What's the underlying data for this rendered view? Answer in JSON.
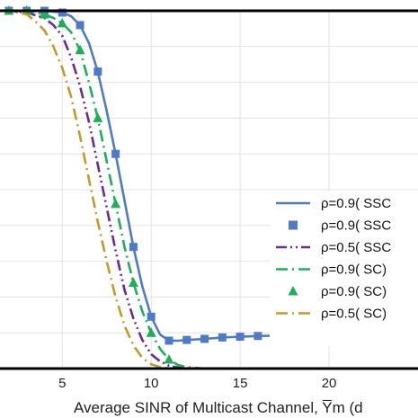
{
  "chart_data": {
    "type": "line",
    "title": "",
    "xlabel": "Average SINR of Multicast Channel, Y̅m (d",
    "ylabel": "",
    "xlim": [
      1.5,
      25
    ],
    "ylim": [
      0,
      1
    ],
    "x_ticks": [
      "5",
      "10",
      "15",
      "20"
    ],
    "x_tick_values": [
      5,
      10,
      15,
      20
    ],
    "y_gridlines": [
      0.1,
      0.2,
      0.3,
      0.4,
      0.5,
      0.6,
      0.7,
      0.8,
      0.9
    ],
    "grid": true,
    "legend_position": "right",
    "series": [
      {
        "name": "ρ=0.9( SSC",
        "style": "solid",
        "marker": "none",
        "color": "#4f7bc6",
        "x": [
          1.5,
          2,
          3,
          4,
          5,
          5.5,
          6,
          6.5,
          7,
          7.5,
          8,
          8.5,
          9,
          9.5,
          10,
          10.5,
          11,
          11.5,
          12,
          13,
          14,
          15,
          16,
          18,
          20,
          22,
          25
        ],
        "y": [
          1.0,
          1.0,
          1.0,
          1.0,
          0.995,
          0.985,
          0.96,
          0.91,
          0.83,
          0.72,
          0.6,
          0.47,
          0.34,
          0.23,
          0.145,
          0.095,
          0.078,
          0.078,
          0.08,
          0.083,
          0.087,
          0.089,
          0.091,
          0.093,
          0.093,
          0.094,
          0.094
        ]
      },
      {
        "name": "ρ=0.9( SSC",
        "style": "none",
        "marker": "square",
        "color": "#4f7bc6",
        "x": [
          2,
          3,
          4,
          5,
          6,
          7,
          8,
          9,
          10,
          11,
          12,
          13,
          14,
          15,
          16,
          17,
          18,
          19,
          20,
          21,
          22,
          23,
          24
        ],
        "y": [
          1.0,
          1.0,
          1.0,
          0.995,
          0.96,
          0.83,
          0.6,
          0.34,
          0.145,
          0.078,
          0.08,
          0.083,
          0.087,
          0.089,
          0.091,
          0.092,
          0.093,
          0.093,
          0.093,
          0.094,
          0.094,
          0.094,
          0.094
        ]
      },
      {
        "name": "ρ=0.5( SSC",
        "style": "dash-dot-dot",
        "marker": "none",
        "color": "#6a2c91",
        "x": [
          1.5,
          2,
          3,
          4,
          4.5,
          5,
          5.5,
          6,
          6.5,
          7,
          7.5,
          8,
          8.5,
          9,
          9.5,
          10,
          10.5,
          11,
          11.5,
          12,
          13,
          15,
          25
        ],
        "y": [
          1.0,
          1.0,
          0.995,
          0.98,
          0.96,
          0.93,
          0.87,
          0.79,
          0.69,
          0.57,
          0.45,
          0.33,
          0.22,
          0.14,
          0.08,
          0.04,
          0.02,
          0.008,
          0.003,
          0.001,
          0.0,
          0.0,
          0.0
        ]
      },
      {
        "name": "ρ=0.9( SC)",
        "style": "dash-dot",
        "marker": "none",
        "color": "#1fae5a",
        "x": [
          1.5,
          2,
          3,
          4,
          4.5,
          5,
          5.5,
          6,
          6.5,
          7,
          7.5,
          8,
          8.5,
          9,
          9.5,
          10,
          10.5,
          11,
          11.5,
          12,
          13,
          15,
          25
        ],
        "y": [
          1.0,
          1.0,
          1.0,
          0.99,
          0.98,
          0.965,
          0.94,
          0.89,
          0.8,
          0.7,
          0.58,
          0.46,
          0.34,
          0.24,
          0.16,
          0.1,
          0.055,
          0.025,
          0.01,
          0.004,
          0.0,
          0.0,
          0.0
        ]
      },
      {
        "name": "ρ=0.9( SC)",
        "style": "none",
        "marker": "triangle",
        "color": "#1fae5a",
        "x": [
          2,
          3,
          4,
          5,
          6,
          7,
          8,
          9,
          10,
          11
        ],
        "y": [
          1.0,
          1.0,
          0.99,
          0.965,
          0.89,
          0.7,
          0.46,
          0.24,
          0.1,
          0.025
        ]
      },
      {
        "name": "ρ=0.5( SC)",
        "style": "dash-dot",
        "marker": "none",
        "color": "#c49a2c",
        "x": [
          1.5,
          2,
          3,
          3.5,
          4,
          4.5,
          5,
          5.5,
          6,
          6.5,
          7,
          7.5,
          8,
          8.5,
          9,
          9.5,
          10,
          10.5,
          11,
          12,
          15,
          25
        ],
        "y": [
          1.0,
          1.0,
          0.99,
          0.97,
          0.945,
          0.9,
          0.84,
          0.76,
          0.65,
          0.53,
          0.41,
          0.3,
          0.2,
          0.12,
          0.065,
          0.03,
          0.012,
          0.004,
          0.001,
          0.0,
          0.0,
          0.0
        ]
      }
    ]
  }
}
